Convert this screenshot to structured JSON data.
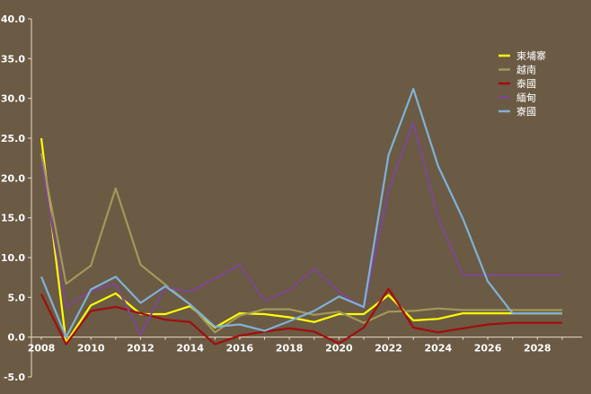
{
  "chart_data": {
    "type": "line",
    "x": [
      2008,
      2009,
      2010,
      2011,
      2012,
      2013,
      2014,
      2015,
      2016,
      2017,
      2018,
      2019,
      2020,
      2021,
      2022,
      2023,
      2024,
      2025,
      2026,
      2027,
      2028,
      2029
    ],
    "xticks": [
      "2008",
      "2010",
      "2012",
      "2014",
      "2016",
      "2018",
      "2020",
      "2022",
      "2024",
      "2026",
      "2028"
    ],
    "yticks": [
      "-5.0",
      "0.0",
      "5.0",
      "10.0",
      "15.0",
      "20.0",
      "25.0",
      "30.0",
      "35.0",
      "40.0"
    ],
    "xlim": [
      2008,
      2029.8
    ],
    "ylim": [
      -5,
      40
    ],
    "grid": false,
    "legend_position": "top-right",
    "series": [
      {
        "name": "柬埔寨",
        "color": "#ffff00",
        "values": [
          25.0,
          -0.7,
          4.0,
          5.5,
          2.9,
          2.9,
          3.9,
          1.2,
          3.0,
          2.9,
          2.5,
          1.9,
          2.9,
          2.9,
          5.3,
          2.1,
          2.3,
          3.0,
          3.0,
          3.0,
          3.0,
          3.0
        ]
      },
      {
        "name": "越南",
        "color": "#a09a5a",
        "values": [
          23.1,
          6.7,
          9.0,
          18.7,
          9.1,
          6.6,
          4.1,
          0.6,
          2.7,
          3.5,
          3.5,
          2.8,
          3.2,
          1.8,
          3.2,
          3.3,
          3.6,
          3.4,
          3.4,
          3.4,
          3.4,
          3.4
        ]
      },
      {
        "name": "泰國",
        "color": "#a30d0d",
        "values": [
          5.4,
          -0.9,
          3.3,
          3.8,
          3.0,
          2.2,
          1.9,
          -0.9,
          0.2,
          0.7,
          1.1,
          0.7,
          -0.8,
          1.2,
          6.1,
          1.2,
          0.6,
          1.1,
          1.6,
          1.8,
          1.8,
          1.8
        ]
      },
      {
        "name": "緬甸",
        "color": "#7a4a8c",
        "values": [
          22.0,
          3.8,
          5.8,
          6.7,
          0.3,
          6.3,
          5.7,
          7.4,
          9.1,
          4.6,
          5.9,
          8.6,
          5.7,
          3.6,
          18.5,
          27.0,
          15.0,
          7.8,
          7.8,
          7.8,
          7.8,
          7.8
        ]
      },
      {
        "name": "寮國",
        "color": "#7fb2d8",
        "values": [
          7.6,
          0.0,
          6.0,
          7.6,
          4.3,
          6.4,
          4.1,
          1.3,
          1.6,
          0.8,
          2.0,
          3.3,
          5.1,
          3.8,
          22.9,
          31.2,
          21.5,
          14.9,
          7.0,
          3.0,
          3.0,
          3.0
        ]
      }
    ]
  }
}
